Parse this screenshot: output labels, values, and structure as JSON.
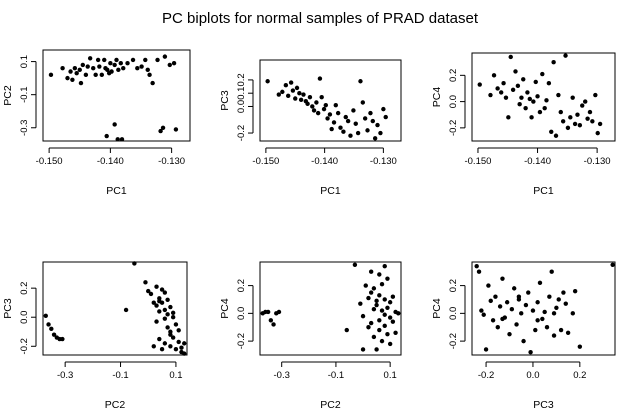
{
  "figure": {
    "title": "PC biplots for normal samples of PRAD dataset"
  },
  "chart_data": [
    {
      "type": "scatter",
      "xlabel": "PC1",
      "ylabel": "PC2",
      "xlim": [
        -0.151,
        -0.127
      ],
      "ylim": [
        -0.38,
        0.17
      ],
      "xticks": [
        -0.15,
        -0.14,
        -0.13
      ],
      "xtick_labels": [
        "-0.150",
        "-0.140",
        "-0.130"
      ],
      "yticks": [
        -0.3,
        -0.1,
        0.1
      ],
      "ytick_labels": [
        "-0.3",
        "-0.1",
        "0.1"
      ],
      "x": [
        -0.1497,
        -0.1478,
        -0.147,
        -0.1465,
        -0.1462,
        -0.1458,
        -0.1455,
        -0.145,
        -0.1448,
        -0.1445,
        -0.144,
        -0.1437,
        -0.1433,
        -0.1428,
        -0.1424,
        -0.142,
        -0.1418,
        -0.1414,
        -0.141,
        -0.1408,
        -0.1405,
        -0.1402,
        -0.14,
        -0.1398,
        -0.1393,
        -0.139,
        -0.1387,
        -0.1383,
        -0.1379,
        -0.1372,
        -0.1363,
        -0.1356,
        -0.1349,
        -0.1343,
        -0.1339,
        -0.1336,
        -0.1331,
        -0.1323,
        -0.1311,
        -0.1303,
        -0.1296,
        -0.1318,
        -0.1314,
        -0.1406,
        -0.1393,
        -0.1388,
        -0.1381,
        -0.1293
      ],
      "y": [
        0.02,
        0.06,
        0.0,
        0.04,
        -0.01,
        0.06,
        0.03,
        0.05,
        -0.03,
        0.08,
        0.02,
        0.07,
        0.12,
        0.06,
        0.02,
        0.11,
        0.07,
        0.02,
        0.11,
        0.06,
        0.05,
        0.03,
        0.09,
        0.04,
        0.08,
        0.11,
        0.05,
        0.09,
        0.06,
        0.09,
        0.11,
        0.06,
        0.07,
        0.11,
        0.05,
        0.02,
        -0.03,
        0.11,
        0.13,
        0.08,
        0.09,
        -0.32,
        -0.3,
        -0.35,
        -0.28,
        -0.37,
        -0.37,
        -0.31
      ]
    },
    {
      "type": "scatter",
      "xlabel": "PC1",
      "ylabel": "PC3",
      "xlim": [
        -0.151,
        -0.127
      ],
      "ylim": [
        -0.26,
        0.35
      ],
      "xticks": [
        -0.15,
        -0.14,
        -0.13
      ],
      "xtick_labels": [
        "-0.150",
        "-0.140",
        "-0.130"
      ],
      "yticks": [
        -0.2,
        0.0,
        0.1,
        0.2
      ],
      "ytick_labels": [
        "-0.2",
        "0.0",
        "0.1",
        "0.2"
      ],
      "x": [
        -0.1497,
        -0.1478,
        -0.1472,
        -0.1466,
        -0.1462,
        -0.1457,
        -0.1454,
        -0.145,
        -0.1447,
        -0.1443,
        -0.144,
        -0.1436,
        -0.1432,
        -0.1429,
        -0.1425,
        -0.1421,
        -0.1418,
        -0.1414,
        -0.1411,
        -0.1408,
        -0.1405,
        -0.1401,
        -0.1398,
        -0.1395,
        -0.1391,
        -0.1388,
        -0.1384,
        -0.1381,
        -0.1377,
        -0.1373,
        -0.1368,
        -0.1364,
        -0.136,
        -0.1356,
        -0.1351,
        -0.1347,
        -0.1343,
        -0.1339,
        -0.1335,
        -0.1331,
        -0.1327,
        -0.1322,
        -0.1318,
        -0.1314,
        -0.131,
        -0.1305,
        -0.13,
        -0.1296
      ],
      "y": [
        0.19,
        0.09,
        0.11,
        0.16,
        0.08,
        0.18,
        0.12,
        0.06,
        0.14,
        0.1,
        0.05,
        0.09,
        0.04,
        0.02,
        0.07,
        0.0,
        -0.03,
        0.03,
        -0.05,
        0.21,
        0.07,
        -0.02,
        0.01,
        -0.09,
        -0.06,
        -0.17,
        -0.12,
        0.01,
        -0.05,
        -0.16,
        -0.19,
        -0.08,
        -0.11,
        -0.22,
        -0.03,
        -0.13,
        -0.2,
        0.19,
        0.03,
        -0.09,
        -0.18,
        -0.05,
        -0.11,
        -0.24,
        -0.14,
        -0.2,
        -0.02,
        -0.08
      ]
    },
    {
      "type": "scatter",
      "xlabel": "PC1",
      "ylabel": "PC4",
      "xlim": [
        -0.151,
        -0.127
      ],
      "ylim": [
        -0.3,
        0.37
      ],
      "xticks": [
        -0.15,
        -0.14,
        -0.13
      ],
      "xtick_labels": [
        "-0.150",
        "-0.140",
        "-0.130"
      ],
      "yticks": [
        -0.2,
        0.0,
        0.2
      ],
      "ytick_labels": [
        "-0.2",
        "0.0",
        "0.2"
      ],
      "x": [
        -0.1497,
        -0.1479,
        -0.1473,
        -0.1467,
        -0.1461,
        -0.1457,
        -0.1453,
        -0.1449,
        -0.1445,
        -0.1441,
        -0.1437,
        -0.1433,
        -0.143,
        -0.1427,
        -0.1424,
        -0.142,
        -0.1417,
        -0.1413,
        -0.141,
        -0.1407,
        -0.1403,
        -0.14,
        -0.1396,
        -0.1392,
        -0.1388,
        -0.1385,
        -0.1381,
        -0.1377,
        -0.1373,
        -0.1369,
        -0.1365,
        -0.1361,
        -0.1357,
        -0.1353,
        -0.1349,
        -0.1345,
        -0.1341,
        -0.1337,
        -0.1333,
        -0.1329,
        -0.1325,
        -0.132,
        -0.1316,
        -0.1312,
        -0.1308,
        -0.1303,
        -0.1299,
        -0.1295
      ],
      "y": [
        0.13,
        0.05,
        0.2,
        0.1,
        0.07,
        0.14,
        0.03,
        -0.12,
        0.34,
        0.09,
        0.23,
        0.12,
        -0.02,
        0.03,
        0.17,
        -0.05,
        0.07,
        0.02,
        -0.12,
        0.0,
        0.15,
        0.04,
        -0.08,
        0.21,
        -0.05,
        0.01,
        0.14,
        -0.23,
        0.3,
        -0.26,
        0.05,
        -0.08,
        -0.15,
        0.35,
        -0.2,
        -0.12,
        0.03,
        -0.17,
        -0.1,
        -0.18,
        -0.03,
        0.0,
        -0.13,
        -0.08,
        -0.15,
        0.05,
        -0.24,
        -0.17
      ]
    },
    {
      "type": "scatter",
      "xlabel": "PC2",
      "ylabel": "PC3",
      "xlim": [
        -0.38,
        0.14
      ],
      "ylim": [
        -0.26,
        0.38
      ],
      "xticks": [
        -0.3,
        -0.1,
        0.1
      ],
      "xtick_labels": [
        "-0.3",
        "-0.1",
        "0.1"
      ],
      "yticks": [
        -0.2,
        0.0,
        0.2
      ],
      "ytick_labels": [
        "-0.2",
        "0.0",
        "0.2"
      ],
      "x": [
        -0.37,
        -0.36,
        -0.35,
        -0.34,
        -0.33,
        -0.32,
        -0.31,
        -0.08,
        -0.05,
        0.0,
        0.01,
        0.02,
        0.02,
        0.03,
        0.03,
        0.03,
        0.04,
        0.04,
        0.04,
        0.05,
        0.05,
        0.05,
        0.06,
        0.06,
        0.06,
        0.07,
        0.07,
        0.07,
        0.08,
        0.08,
        0.08,
        0.09,
        0.09,
        0.1,
        0.1,
        0.11,
        0.11,
        0.12,
        0.12,
        0.13,
        0.13,
        -0.01,
        0.04,
        0.06,
        0.08,
        0.09
      ],
      "y": [
        0.01,
        -0.05,
        -0.08,
        -0.12,
        -0.14,
        -0.15,
        -0.15,
        0.05,
        0.37,
        0.18,
        0.16,
        0.1,
        -0.2,
        0.21,
        0.08,
        -0.03,
        0.13,
        -0.15,
        0.04,
        0.1,
        -0.22,
        0.19,
        0.05,
        -0.01,
        -0.18,
        0.12,
        -0.07,
        0.02,
        -0.1,
        0.07,
        -0.2,
        0.0,
        -0.14,
        -0.05,
        -0.22,
        -0.09,
        -0.17,
        -0.21,
        -0.24,
        -0.18,
        -0.25,
        0.24,
        0.11,
        0.17,
        -0.12,
        0.03
      ]
    },
    {
      "type": "scatter",
      "xlabel": "PC2",
      "ylabel": "PC4",
      "xlim": [
        -0.38,
        0.14
      ],
      "ylim": [
        -0.3,
        0.37
      ],
      "xticks": [
        -0.3,
        -0.1,
        0.1
      ],
      "xtick_labels": [
        "-0.3",
        "-0.1",
        "0.1"
      ],
      "yticks": [
        -0.2,
        0.0,
        0.2
      ],
      "ytick_labels": [
        "-0.2",
        "0.0",
        "0.2"
      ],
      "x": [
        -0.37,
        -0.36,
        -0.35,
        -0.34,
        -0.33,
        -0.32,
        -0.31,
        -0.06,
        -0.03,
        -0.01,
        0.0,
        0.01,
        0.02,
        0.02,
        0.03,
        0.03,
        0.04,
        0.04,
        0.04,
        0.05,
        0.05,
        0.05,
        0.06,
        0.06,
        0.06,
        0.07,
        0.07,
        0.07,
        0.08,
        0.08,
        0.08,
        0.09,
        0.09,
        0.09,
        0.1,
        0.1,
        0.1,
        0.11,
        0.11,
        0.12,
        0.12,
        0.13,
        0.0,
        0.03,
        0.06,
        0.08
      ],
      "y": [
        0.0,
        0.01,
        0.01,
        -0.05,
        -0.08,
        0.0,
        0.01,
        -0.12,
        0.35,
        0.07,
        -0.02,
        0.2,
        -0.1,
        0.11,
        0.3,
        -0.07,
        0.03,
        -0.17,
        0.18,
        0.09,
        -0.26,
        0.06,
        -0.05,
        0.13,
        -0.12,
        0.21,
        0.02,
        -0.2,
        0.1,
        -0.09,
        0.34,
        0.04,
        -0.15,
        0.25,
        -0.03,
        0.08,
        -0.22,
        0.12,
        -0.06,
        0.01,
        -0.14,
        0.0,
        -0.26,
        0.15,
        0.28,
        -0.01
      ]
    },
    {
      "type": "scatter",
      "xlabel": "PC3",
      "ylabel": "PC4",
      "xlim": [
        -0.26,
        0.35
      ],
      "ylim": [
        -0.3,
        0.37
      ],
      "xticks": [
        -0.2,
        0.0,
        0.2
      ],
      "xtick_labels": [
        "-0.2",
        "0.0",
        "0.2"
      ],
      "yticks": [
        -0.2,
        0.0,
        0.2
      ],
      "ytick_labels": [
        "-0.2",
        "0.0",
        "0.2"
      ],
      "x": [
        -0.24,
        -0.23,
        -0.22,
        -0.2,
        -0.19,
        -0.18,
        -0.17,
        -0.16,
        -0.15,
        -0.14,
        -0.13,
        -0.12,
        -0.11,
        -0.1,
        -0.09,
        -0.08,
        -0.07,
        -0.06,
        -0.05,
        -0.04,
        -0.03,
        -0.02,
        -0.01,
        0.0,
        0.01,
        0.02,
        0.03,
        0.04,
        0.05,
        0.06,
        0.07,
        0.08,
        0.09,
        0.1,
        0.11,
        0.12,
        0.13,
        0.14,
        0.15,
        0.17,
        0.18,
        0.2,
        0.34,
        -0.21,
        -0.13,
        -0.06,
        0.02,
        0.09
      ],
      "y": [
        0.34,
        0.3,
        0.02,
        -0.26,
        0.2,
        0.09,
        -0.05,
        0.12,
        -0.1,
        0.05,
        0.25,
        -0.03,
        0.08,
        -0.15,
        0.03,
        0.18,
        -0.08,
        0.1,
        0.0,
        -0.2,
        0.06,
        0.15,
        -0.28,
        0.02,
        -0.12,
        0.08,
        0.22,
        -0.04,
        0.01,
        -0.1,
        0.12,
        0.3,
        -0.16,
        0.04,
        0.1,
        -0.12,
        0.15,
        0.07,
        -0.14,
        0.0,
        0.16,
        -0.24,
        0.35,
        -0.01,
        -0.04,
        0.12,
        -0.05,
        0.0
      ]
    }
  ]
}
